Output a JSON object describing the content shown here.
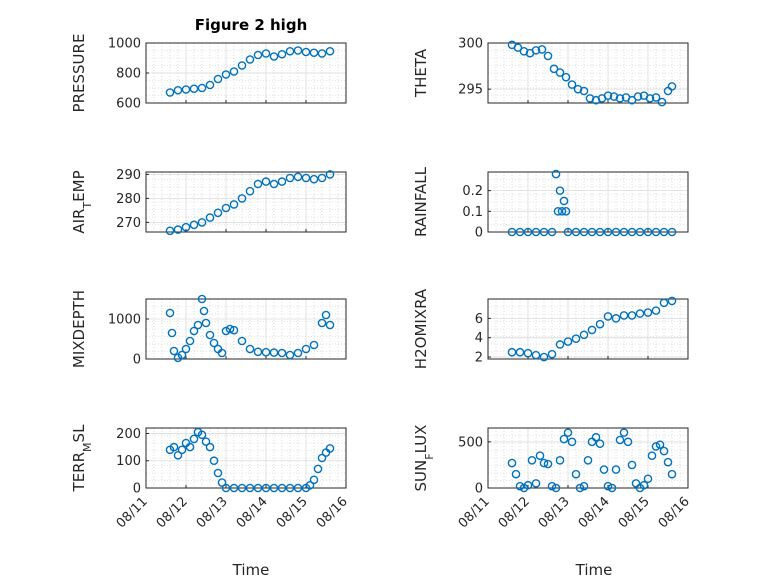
{
  "figure_title": "Figure 2 high",
  "x_axis_label": "Time",
  "x_tick_labels": [
    "08/11",
    "08/12",
    "08/13",
    "08/14",
    "08/15",
    "08/16"
  ],
  "colors": {
    "marker": "#0072BD",
    "axis": "#262626",
    "grid": "#c8c8c8"
  },
  "chart_data": [
    {
      "type": "scatter",
      "ylabel": "PRESSURE",
      "ylim": [
        600,
        1000
      ],
      "yticks": [
        600,
        800,
        1000
      ],
      "xlim": [
        0,
        5
      ],
      "grid": true,
      "x": [
        0.6,
        0.8,
        1.0,
        1.2,
        1.4,
        1.6,
        1.8,
        2.0,
        2.2,
        2.4,
        2.6,
        2.8,
        3.0,
        3.2,
        3.4,
        3.6,
        3.8,
        4.0,
        4.2,
        4.4,
        4.6
      ],
      "y": [
        670,
        685,
        690,
        695,
        700,
        720,
        760,
        790,
        810,
        850,
        890,
        920,
        930,
        910,
        925,
        945,
        950,
        940,
        935,
        930,
        945
      ]
    },
    {
      "type": "scatter",
      "ylabel": "THETA",
      "ylim": [
        293.5,
        300
      ],
      "yticks": [
        295,
        300
      ],
      "xlim": [
        0,
        5
      ],
      "grid": true,
      "x": [
        0.6,
        0.75,
        0.9,
        1.05,
        1.2,
        1.35,
        1.5,
        1.65,
        1.8,
        1.95,
        2.1,
        2.25,
        2.4,
        2.55,
        2.7,
        2.85,
        3.0,
        3.15,
        3.3,
        3.45,
        3.6,
        3.75,
        3.9,
        4.05,
        4.2,
        4.35,
        4.5,
        4.6
      ],
      "y": [
        299.8,
        299.5,
        299.1,
        298.9,
        299.2,
        299.3,
        298.6,
        297.2,
        296.8,
        296.3,
        295.5,
        295.0,
        294.8,
        294.0,
        293.8,
        294.0,
        294.3,
        294.2,
        294.0,
        294.1,
        293.8,
        294.2,
        294.3,
        294.0,
        294.1,
        293.6,
        294.8,
        295.3
      ]
    },
    {
      "type": "scatter",
      "ylabel": "AIR_T_EMP",
      "ylim": [
        266,
        291
      ],
      "yticks": [
        270,
        280,
        290
      ],
      "xlim": [
        0,
        5
      ],
      "grid": true,
      "x": [
        0.6,
        0.8,
        1.0,
        1.2,
        1.4,
        1.6,
        1.8,
        2.0,
        2.2,
        2.4,
        2.6,
        2.8,
        3.0,
        3.2,
        3.4,
        3.6,
        3.8,
        4.0,
        4.2,
        4.4,
        4.6
      ],
      "y": [
        266.5,
        267,
        268,
        269,
        270,
        272,
        274,
        276,
        277.5,
        280,
        283,
        286,
        287,
        286,
        287,
        288.5,
        289,
        288.5,
        288,
        288.5,
        290
      ]
    },
    {
      "type": "scatter",
      "ylabel": "RAINFALL",
      "ylim": [
        0,
        0.29
      ],
      "yticks": [
        0,
        0.1,
        0.2
      ],
      "xlim": [
        0,
        5
      ],
      "grid": true,
      "x": [
        0.6,
        0.8,
        1.0,
        1.2,
        1.4,
        1.6,
        1.7,
        1.75,
        1.8,
        1.85,
        1.9,
        1.95,
        2.0,
        2.2,
        2.4,
        2.6,
        2.8,
        3.0,
        3.2,
        3.4,
        3.6,
        3.8,
        4.0,
        4.2,
        4.4,
        4.6
      ],
      "y": [
        0,
        0,
        0,
        0,
        0,
        0,
        0.28,
        0.1,
        0.2,
        0.1,
        0.15,
        0.1,
        0,
        0,
        0,
        0,
        0,
        0,
        0,
        0,
        0,
        0,
        0,
        0,
        0,
        0
      ]
    },
    {
      "type": "scatter",
      "ylabel": "MIXDEPTH",
      "ylim": [
        0,
        1500
      ],
      "yticks": [
        0,
        1000
      ],
      "xlim": [
        0,
        5
      ],
      "grid": true,
      "x": [
        0.6,
        0.65,
        0.7,
        0.8,
        0.9,
        1.0,
        1.1,
        1.2,
        1.3,
        1.4,
        1.45,
        1.5,
        1.6,
        1.7,
        1.8,
        1.9,
        2.0,
        2.1,
        2.2,
        2.4,
        2.6,
        2.8,
        3.0,
        3.2,
        3.4,
        3.6,
        3.8,
        4.0,
        4.2,
        4.4,
        4.5,
        4.6
      ],
      "y": [
        1150,
        650,
        200,
        30,
        100,
        250,
        450,
        700,
        850,
        1500,
        1200,
        900,
        600,
        400,
        250,
        150,
        700,
        750,
        720,
        450,
        250,
        180,
        170,
        160,
        150,
        100,
        150,
        250,
        350,
        900,
        1100,
        850
      ]
    },
    {
      "type": "scatter",
      "ylabel": "H2OMIXRA",
      "ylim": [
        1.8,
        8
      ],
      "yticks": [
        2,
        4,
        6
      ],
      "xlim": [
        0,
        5
      ],
      "grid": true,
      "x": [
        0.6,
        0.8,
        1.0,
        1.2,
        1.4,
        1.6,
        1.8,
        2.0,
        2.2,
        2.4,
        2.6,
        2.8,
        3.0,
        3.2,
        3.4,
        3.6,
        3.8,
        4.0,
        4.2,
        4.4,
        4.6
      ],
      "y": [
        2.5,
        2.5,
        2.4,
        2.2,
        2.0,
        2.3,
        3.3,
        3.6,
        3.9,
        4.3,
        4.8,
        5.4,
        6.2,
        6.0,
        6.3,
        6.3,
        6.5,
        6.6,
        6.8,
        7.6,
        7.8
      ]
    },
    {
      "type": "scatter",
      "ylabel": "TERR_M_SL",
      "ylim": [
        0,
        220
      ],
      "yticks": [
        0,
        100,
        200
      ],
      "xlim": [
        0,
        5
      ],
      "grid": true,
      "x": [
        0.6,
        0.7,
        0.8,
        0.9,
        1.0,
        1.1,
        1.2,
        1.3,
        1.4,
        1.5,
        1.6,
        1.7,
        1.8,
        1.9,
        2.0,
        2.2,
        2.4,
        2.6,
        2.8,
        3.0,
        3.2,
        3.4,
        3.6,
        3.8,
        4.0,
        4.1,
        4.2,
        4.3,
        4.4,
        4.5,
        4.6
      ],
      "y": [
        140,
        150,
        120,
        140,
        165,
        150,
        180,
        205,
        195,
        170,
        150,
        100,
        55,
        20,
        0,
        0,
        0,
        0,
        0,
        0,
        0,
        0,
        0,
        0,
        0,
        10,
        30,
        70,
        110,
        130,
        145
      ]
    },
    {
      "type": "scatter",
      "ylabel": "SUN_F_LUX",
      "ylim": [
        0,
        650
      ],
      "yticks": [
        0,
        500
      ],
      "xlim": [
        0,
        5
      ],
      "grid": true,
      "x": [
        0.6,
        0.7,
        0.8,
        0.9,
        1.0,
        1.1,
        1.2,
        1.3,
        1.4,
        1.5,
        1.6,
        1.7,
        1.8,
        1.9,
        2.0,
        2.1,
        2.2,
        2.3,
        2.4,
        2.5,
        2.6,
        2.7,
        2.8,
        2.9,
        3.0,
        3.1,
        3.2,
        3.3,
        3.4,
        3.5,
        3.6,
        3.7,
        3.8,
        3.9,
        4.0,
        4.1,
        4.2,
        4.3,
        4.4,
        4.5,
        4.6
      ],
      "y": [
        270,
        150,
        20,
        0,
        30,
        300,
        50,
        350,
        270,
        260,
        20,
        0,
        300,
        530,
        600,
        500,
        150,
        0,
        20,
        300,
        500,
        550,
        480,
        200,
        20,
        0,
        200,
        520,
        600,
        500,
        250,
        50,
        0,
        30,
        100,
        350,
        450,
        470,
        400,
        280,
        150
      ]
    }
  ]
}
